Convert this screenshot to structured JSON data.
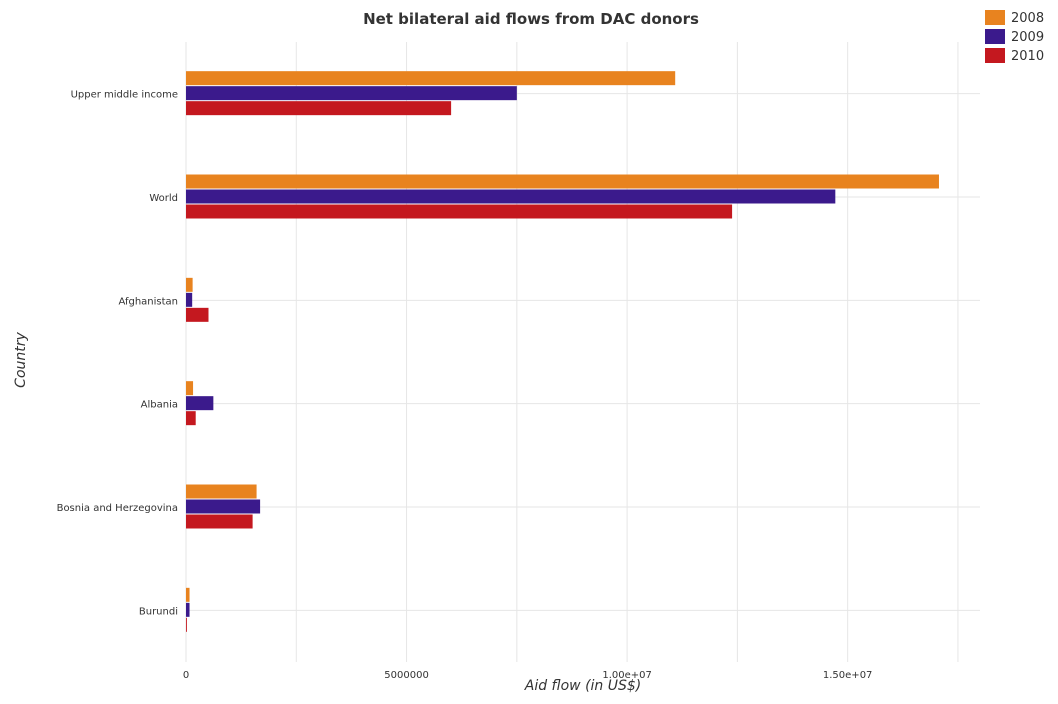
{
  "chart_data": {
    "type": "bar",
    "orientation": "horizontal",
    "title": "Net bilateral aid flows from DAC donors",
    "xlabel": "Aid flow (in US$)",
    "ylabel": "Country",
    "categories": [
      "Upper middle income",
      "World",
      "Afghanistan",
      "Albania",
      "Bosnia and Herzegovina",
      "Burundi"
    ],
    "series": [
      {
        "name": "2008",
        "color": "#e8831f",
        "values": [
          11090000,
          17070000,
          150000,
          160000,
          1600000,
          80000
        ]
      },
      {
        "name": "2009",
        "color": "#3b1a8c",
        "values": [
          7500000,
          14720000,
          140000,
          620000,
          1680000,
          80000
        ]
      },
      {
        "name": "2010",
        "color": "#c4181f",
        "values": [
          6010000,
          12380000,
          510000,
          220000,
          1510000,
          20000
        ]
      }
    ],
    "xlim": [
      0,
      18000000
    ],
    "xticks": [
      0,
      5000000,
      10000000,
      15000000
    ],
    "xtick_labels": [
      "0",
      "5000000",
      "1.00e+07",
      "1.50e+07"
    ],
    "grid": true,
    "legend_position": "top-right"
  }
}
